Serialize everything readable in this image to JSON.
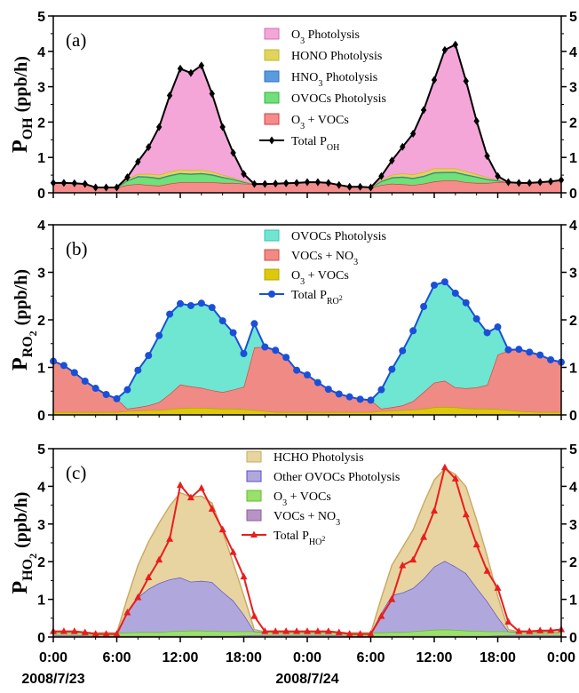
{
  "chart_data": [
    {
      "type": "area",
      "panel_tag": "(a)",
      "ylabel_main": "P",
      "ylabel_sub": "OH",
      "ylabel_unit": "(ppb/h)",
      "ylim": [
        0,
        5
      ],
      "yticks": [
        "0",
        "1",
        "2",
        "3",
        "4",
        "5"
      ],
      "x_hours": [
        0,
        1,
        2,
        3,
        4,
        5,
        6,
        7,
        8,
        9,
        10,
        11,
        12,
        13,
        14,
        15,
        16,
        17,
        18,
        19,
        20,
        21,
        22,
        23,
        24,
        25,
        26,
        27,
        28,
        29,
        30,
        31,
        32,
        33,
        34,
        35,
        36,
        37,
        38,
        39,
        40,
        41,
        42,
        43,
        44,
        45,
        46,
        47,
        48
      ],
      "stack_order": [
        "O3 + VOCs",
        "OVOCs Photolysis",
        "HNO3 Photolysis",
        "HONO Photolysis",
        "O3 Photolysis"
      ],
      "series": [
        {
          "name": "O3 Photolysis",
          "color": "#f5a6d8",
          "line": "#d36fb4",
          "values": [
            0,
            0,
            0,
            0,
            0,
            0,
            0,
            0.05,
            0.35,
            0.75,
            1.35,
            2.15,
            2.85,
            2.75,
            2.95,
            2.2,
            1.35,
            0.7,
            0.2,
            0,
            0,
            0,
            0,
            0,
            0,
            0,
            0,
            0,
            0,
            0,
            0,
            0.1,
            0.4,
            0.75,
            1.15,
            1.75,
            2.5,
            3.35,
            3.5,
            2.55,
            1.5,
            0.6,
            0.1,
            0,
            0,
            0,
            0,
            0,
            0
          ]
        },
        {
          "name": "HONO Photolysis",
          "color": "#e0d45a",
          "line": "#c9b32a",
          "values": [
            0,
            0,
            0,
            0,
            0,
            0,
            0,
            0.04,
            0.06,
            0.08,
            0.09,
            0.1,
            0.1,
            0.1,
            0.09,
            0.08,
            0.06,
            0.04,
            0.02,
            0,
            0,
            0,
            0,
            0,
            0,
            0,
            0,
            0,
            0,
            0,
            0,
            0.04,
            0.07,
            0.09,
            0.1,
            0.11,
            0.11,
            0.1,
            0.1,
            0.09,
            0.07,
            0.05,
            0.02,
            0,
            0,
            0,
            0,
            0,
            0
          ]
        },
        {
          "name": "HNO3 Photolysis",
          "color": "#5a9be0",
          "line": "#2f6fc0",
          "values": [
            0,
            0,
            0,
            0,
            0,
            0,
            0,
            0.01,
            0.02,
            0.02,
            0.02,
            0.02,
            0.02,
            0.02,
            0.02,
            0.02,
            0.02,
            0.01,
            0.01,
            0,
            0,
            0,
            0,
            0,
            0,
            0,
            0,
            0,
            0,
            0,
            0,
            0.01,
            0.02,
            0.02,
            0.02,
            0.02,
            0.02,
            0.02,
            0.02,
            0.02,
            0.02,
            0.01,
            0.01,
            0,
            0,
            0,
            0,
            0,
            0
          ]
        },
        {
          "name": "OVOCs Photolysis",
          "color": "#6fe07a",
          "line": "#2fb43a",
          "values": [
            0,
            0,
            0,
            0,
            0,
            0,
            0,
            0.12,
            0.2,
            0.22,
            0.2,
            0.22,
            0.24,
            0.22,
            0.24,
            0.2,
            0.15,
            0.1,
            0.04,
            0,
            0,
            0,
            0,
            0,
            0,
            0,
            0,
            0,
            0,
            0,
            0,
            0.1,
            0.16,
            0.2,
            0.18,
            0.2,
            0.24,
            0.22,
            0.22,
            0.2,
            0.16,
            0.1,
            0.04,
            0,
            0,
            0,
            0,
            0,
            0
          ]
        },
        {
          "name": "O3 + VOCs",
          "color": "#f58c8c",
          "line": "#d83a3a",
          "values": [
            0.28,
            0.28,
            0.27,
            0.25,
            0.15,
            0.15,
            0.15,
            0.22,
            0.25,
            0.22,
            0.2,
            0.26,
            0.3,
            0.3,
            0.3,
            0.3,
            0.28,
            0.28,
            0.26,
            0.25,
            0.25,
            0.26,
            0.27,
            0.28,
            0.3,
            0.3,
            0.28,
            0.22,
            0.17,
            0.17,
            0.15,
            0.22,
            0.26,
            0.24,
            0.22,
            0.26,
            0.32,
            0.35,
            0.35,
            0.3,
            0.28,
            0.28,
            0.3,
            0.3,
            0.28,
            0.28,
            0.3,
            0.32,
            0.36
          ]
        }
      ],
      "total": {
        "name": "Total P",
        "name_sub": "OH",
        "color": "#000000",
        "marker": "diamond",
        "values": [
          0.28,
          0.28,
          0.27,
          0.25,
          0.15,
          0.15,
          0.15,
          0.44,
          0.88,
          1.29,
          1.86,
          2.75,
          3.51,
          3.39,
          3.6,
          2.8,
          1.86,
          1.13,
          0.53,
          0.25,
          0.25,
          0.26,
          0.27,
          0.28,
          0.3,
          0.3,
          0.28,
          0.22,
          0.17,
          0.17,
          0.15,
          0.47,
          0.91,
          1.3,
          1.67,
          2.34,
          3.19,
          4.04,
          4.19,
          3.16,
          2.03,
          1.04,
          0.47,
          0.3,
          0.28,
          0.28,
          0.3,
          0.32,
          0.36
        ]
      },
      "legend": [
        {
          "name": "O",
          "sub": "3",
          "rest": " Photolysis"
        },
        {
          "name": "HONO Photolysis",
          "sub": "",
          "rest": ""
        },
        {
          "name": "HNO",
          "sub": "3",
          "rest": " Photolysis"
        },
        {
          "name": "OVOCs Photolysis",
          "sub": "",
          "rest": ""
        },
        {
          "name": "O",
          "sub": "3",
          "rest": " + VOCs"
        },
        {
          "name": "Total P",
          "sub": "OH",
          "rest": ""
        }
      ]
    },
    {
      "type": "area",
      "panel_tag": "(b)",
      "ylabel_main": "P",
      "ylabel_sub": "RO",
      "ylabel_sub2": "2",
      "ylabel_unit": "(ppb/h)",
      "ylim": [
        0,
        4
      ],
      "yticks": [
        "0",
        "1",
        "2",
        "3",
        "4"
      ],
      "x_hours": [
        0,
        1,
        2,
        3,
        4,
        5,
        6,
        7,
        8,
        9,
        10,
        11,
        12,
        13,
        14,
        15,
        16,
        17,
        18,
        19,
        20,
        21,
        22,
        23,
        24,
        25,
        26,
        27,
        28,
        29,
        30,
        31,
        32,
        33,
        34,
        35,
        36,
        37,
        38,
        39,
        40,
        41,
        42,
        43,
        44,
        45,
        46,
        47,
        48
      ],
      "stack_order": [
        "O3 + VOCs",
        "VOCs + NO3",
        "OVOCs Photolysis"
      ],
      "series": [
        {
          "name": "OVOCs Photolysis",
          "color": "#6ee6d2",
          "line": "#3fbfae",
          "values": [
            0,
            0,
            0,
            0,
            0,
            0,
            0,
            0.4,
            0.78,
            1.05,
            1.4,
            1.68,
            1.7,
            1.7,
            1.78,
            1.74,
            1.5,
            1.2,
            0.7,
            0.5,
            0,
            0,
            0,
            0,
            0,
            0,
            0,
            0,
            0,
            0,
            0,
            0.4,
            0.8,
            1.15,
            1.48,
            1.8,
            2.05,
            2.08,
            1.98,
            1.8,
            1.44,
            1.1,
            0.58,
            0.02,
            0,
            0,
            0,
            0,
            0
          ]
        },
        {
          "name": "VOCs + NO3",
          "color": "#f08a85",
          "line": "#d44a44",
          "values": [
            1.07,
            0.98,
            0.83,
            0.65,
            0.5,
            0.37,
            0.28,
            0.05,
            0.07,
            0.1,
            0.17,
            0.32,
            0.5,
            0.45,
            0.42,
            0.38,
            0.35,
            0.4,
            0.47,
            1.32,
            1.35,
            1.3,
            1.15,
            0.88,
            0.78,
            0.62,
            0.48,
            0.38,
            0.32,
            0.27,
            0.25,
            0.05,
            0.07,
            0.1,
            0.18,
            0.35,
            0.52,
            0.55,
            0.42,
            0.42,
            0.45,
            0.5,
            1.15,
            1.25,
            1.3,
            1.25,
            1.2,
            1.1,
            1.05
          ]
        },
        {
          "name": "O3 + VOCs",
          "color": "#dcc80c",
          "line": "#b8a400",
          "values": [
            0.06,
            0.06,
            0.06,
            0.06,
            0.06,
            0.06,
            0.06,
            0.08,
            0.09,
            0.1,
            0.1,
            0.12,
            0.14,
            0.15,
            0.15,
            0.14,
            0.13,
            0.13,
            0.12,
            0.1,
            0.08,
            0.06,
            0.06,
            0.06,
            0.06,
            0.06,
            0.06,
            0.06,
            0.06,
            0.06,
            0.06,
            0.08,
            0.09,
            0.1,
            0.11,
            0.13,
            0.16,
            0.17,
            0.16,
            0.14,
            0.13,
            0.13,
            0.12,
            0.1,
            0.08,
            0.07,
            0.06,
            0.06,
            0.06
          ]
        }
      ],
      "total": {
        "name": "Total P",
        "name_sub": "RO",
        "name_sub2": "2",
        "color": "#1a4fd8",
        "marker": "circle",
        "values": [
          1.13,
          1.04,
          0.89,
          0.71,
          0.56,
          0.43,
          0.34,
          0.53,
          0.94,
          1.25,
          1.67,
          2.12,
          2.34,
          2.3,
          2.35,
          2.26,
          1.98,
          1.73,
          1.29,
          1.92,
          1.43,
          1.36,
          1.21,
          0.94,
          0.84,
          0.68,
          0.54,
          0.44,
          0.38,
          0.33,
          0.31,
          0.53,
          0.96,
          1.35,
          1.77,
          2.28,
          2.73,
          2.8,
          2.56,
          2.36,
          2.02,
          1.73,
          1.85,
          1.37,
          1.38,
          1.32,
          1.26,
          1.16,
          1.11
        ]
      },
      "legend": [
        {
          "name": "OVOCs Photolysis",
          "sub": "",
          "rest": ""
        },
        {
          "name": "VOCs + NO",
          "sub": "3",
          "rest": ""
        },
        {
          "name": "O",
          "sub": "3",
          "rest": " + VOCs"
        },
        {
          "name": "Total P",
          "sub": "RO2",
          "rest": ""
        }
      ]
    },
    {
      "type": "area",
      "panel_tag": "(c)",
      "ylabel_main": "P",
      "ylabel_sub": "HO",
      "ylabel_sub2": "2",
      "ylabel_unit": "(ppb/h)",
      "ylim": [
        0,
        5
      ],
      "yticks": [
        "0",
        "1",
        "2",
        "3",
        "4",
        "5"
      ],
      "x_hours": [
        0,
        1,
        2,
        3,
        4,
        5,
        6,
        7,
        8,
        9,
        10,
        11,
        12,
        13,
        14,
        15,
        16,
        17,
        18,
        19,
        20,
        21,
        22,
        23,
        24,
        25,
        26,
        27,
        28,
        29,
        30,
        31,
        32,
        33,
        34,
        35,
        36,
        37,
        38,
        39,
        40,
        41,
        42,
        43,
        44,
        45,
        46,
        47,
        48
      ],
      "stack_order": [
        "VOCs + NO3",
        "O3 + VOCs",
        "Other OVOCs Photolysis",
        "HCHO Photolysis"
      ],
      "series": [
        {
          "name": "HCHO Photolysis",
          "color": "#e8d4a0",
          "line": "#c8a860",
          "values": [
            0,
            0,
            0,
            0,
            0,
            0,
            0,
            0.4,
            0.85,
            1.25,
            1.6,
            1.95,
            2.25,
            2.25,
            2.25,
            2.1,
            1.6,
            1.0,
            0.5,
            0.05,
            0,
            0,
            0,
            0,
            0,
            0,
            0,
            0,
            0,
            0,
            0,
            0.4,
            0.8,
            1.2,
            1.55,
            2.0,
            2.3,
            2.45,
            2.45,
            2.3,
            1.8,
            1.2,
            0.55,
            0.05,
            0,
            0,
            0,
            0,
            0
          ]
        },
        {
          "name": "Other OVOCs Photolysis",
          "color": "#b0a8dc",
          "line": "#5a50c8",
          "values": [
            0,
            0,
            0,
            0,
            0,
            0,
            0,
            0.52,
            0.92,
            1.15,
            1.3,
            1.38,
            1.42,
            1.3,
            1.32,
            1.3,
            1.05,
            0.82,
            0.45,
            0,
            0,
            0,
            0,
            0,
            0,
            0,
            0,
            0,
            0,
            0,
            0,
            0.52,
            0.98,
            1.05,
            1.15,
            1.38,
            1.68,
            1.82,
            1.68,
            1.52,
            1.15,
            0.8,
            0.38,
            0,
            0,
            0,
            0,
            0,
            0
          ]
        },
        {
          "name": "O3 + VOCs",
          "color": "#9be06a",
          "line": "#5ec02a",
          "values": [
            0.08,
            0.08,
            0.08,
            0.08,
            0.08,
            0.08,
            0.08,
            0.09,
            0.1,
            0.1,
            0.1,
            0.12,
            0.13,
            0.14,
            0.14,
            0.13,
            0.12,
            0.12,
            0.11,
            0.1,
            0.09,
            0.08,
            0.08,
            0.08,
            0.08,
            0.08,
            0.08,
            0.08,
            0.08,
            0.08,
            0.08,
            0.09,
            0.1,
            0.1,
            0.12,
            0.14,
            0.16,
            0.17,
            0.16,
            0.14,
            0.13,
            0.12,
            0.11,
            0.1,
            0.09,
            0.08,
            0.08,
            0.08,
            0.08
          ]
        },
        {
          "name": "VOCs + NO3",
          "color": "#b894c4",
          "line": "#8a5ca0",
          "values": [
            0.05,
            0.05,
            0.05,
            0.04,
            0.03,
            0.03,
            0.03,
            0.03,
            0.03,
            0.03,
            0.03,
            0.03,
            0.03,
            0.03,
            0.03,
            0.03,
            0.03,
            0.03,
            0.04,
            0.05,
            0.05,
            0.05,
            0.05,
            0.05,
            0.05,
            0.05,
            0.05,
            0.04,
            0.03,
            0.03,
            0.03,
            0.03,
            0.03,
            0.03,
            0.03,
            0.03,
            0.03,
            0.03,
            0.03,
            0.03,
            0.03,
            0.03,
            0.04,
            0.05,
            0.05,
            0.05,
            0.05,
            0.05,
            0.05
          ]
        }
      ],
      "total": {
        "name": "Total P",
        "name_sub": "HO",
        "name_sub2": "2",
        "color": "#e81e1e",
        "marker": "triangle",
        "values": [
          0.15,
          0.15,
          0.15,
          0.12,
          0.08,
          0.08,
          0.08,
          0.65,
          1.05,
          1.58,
          2.05,
          2.6,
          4.03,
          3.7,
          3.95,
          3.4,
          2.85,
          2.25,
          1.6,
          0.55,
          0.15,
          0.15,
          0.15,
          0.15,
          0.15,
          0.15,
          0.15,
          0.12,
          0.08,
          0.08,
          0.08,
          0.55,
          1.0,
          1.9,
          2.05,
          2.65,
          3.35,
          4.5,
          4.2,
          3.25,
          2.45,
          1.75,
          1.3,
          0.4,
          0.15,
          0.15,
          0.17,
          0.17,
          0.2
        ]
      },
      "legend": [
        {
          "name": "HCHO Photolysis",
          "sub": "",
          "rest": ""
        },
        {
          "name": "Other OVOCs Photolysis",
          "sub": "",
          "rest": ""
        },
        {
          "name": "O",
          "sub": "3",
          "rest": " + VOCs"
        },
        {
          "name": "VOCs + NO",
          "sub": "3",
          "rest": ""
        },
        {
          "name": "Total P",
          "sub": "HO2",
          "rest": ""
        }
      ]
    }
  ],
  "x_axis": {
    "tick_labels": [
      "0:00",
      "6:00",
      "12:00",
      "18:00",
      "0:00",
      "6:00",
      "12:00",
      "18:00",
      "0:00"
    ],
    "date_labels": [
      "2008/7/23",
      "2008/7/24"
    ]
  }
}
